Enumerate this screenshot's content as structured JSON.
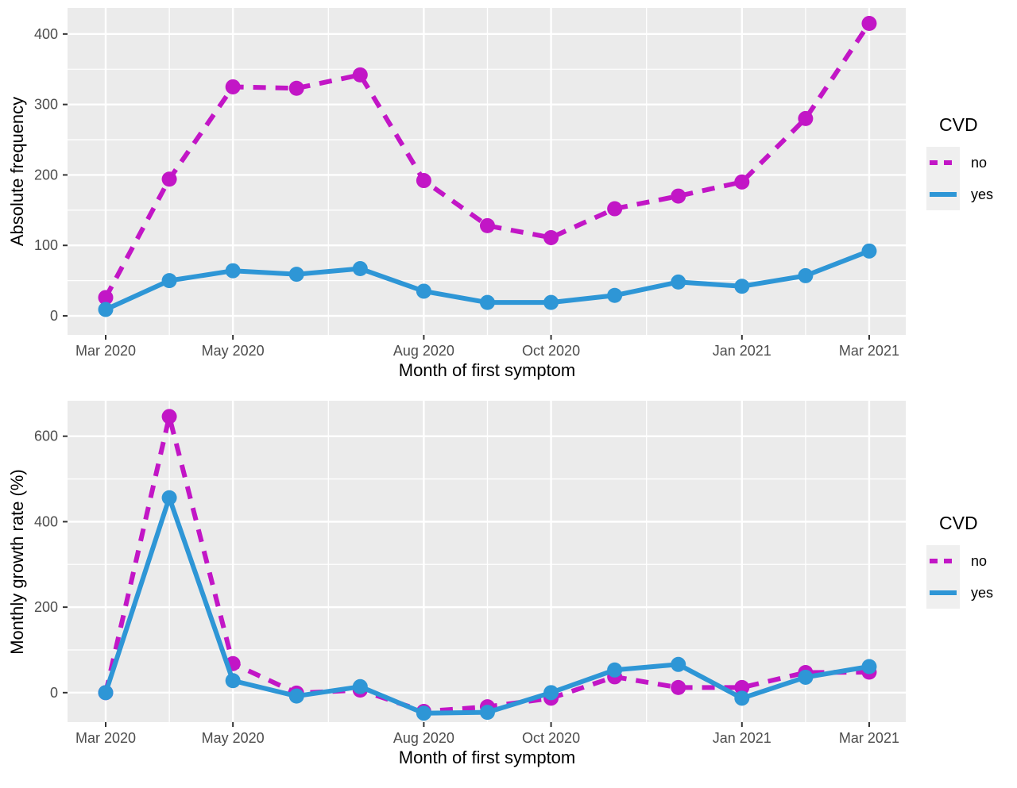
{
  "colors": {
    "no_series": "#C216C6",
    "yes_series": "#2E96D6",
    "panel_background": "#EBEBEB",
    "gridline": "#FFFFFF",
    "tick_text": "#4D4D4D",
    "tick_mark": "#333333",
    "axis_title_text": "#000000",
    "legend_key_background": "#EFEFEF"
  },
  "legend": {
    "title": "CVD",
    "entries": [
      {
        "label": "no",
        "style": "dashed",
        "color": "#C216C6"
      },
      {
        "label": "yes",
        "style": "solid",
        "color": "#2E96D6"
      }
    ]
  },
  "chart_data": [
    {
      "type": "line",
      "title": "",
      "xlabel": "Month of first symptom",
      "ylabel": "Absolute frequency",
      "categories": [
        "Mar 2020",
        "Apr 2020",
        "May 2020",
        "Jun 2020",
        "Jul 2020",
        "Aug 2020",
        "Sep 2020",
        "Oct 2020",
        "Nov 2020",
        "Dec 2020",
        "Jan 2021",
        "Feb 2021",
        "Mar 2021"
      ],
      "x_ticks": [
        {
          "index": 0,
          "label": "Mar 2020"
        },
        {
          "index": 2,
          "label": "May 2020"
        },
        {
          "index": 5,
          "label": "Aug 2020"
        },
        {
          "index": 7,
          "label": "Oct 2020"
        },
        {
          "index": 10,
          "label": "Jan 2021"
        },
        {
          "index": 12,
          "label": "Mar 2021"
        }
      ],
      "yticks": [
        0,
        100,
        200,
        300,
        400
      ],
      "ylim": [
        -27,
        437
      ],
      "grid": true,
      "legend_position": "right",
      "series": [
        {
          "name": "no",
          "dash": true,
          "color": "#C216C6",
          "values": [
            26,
            194,
            325,
            323,
            342,
            192,
            128,
            111,
            152,
            170,
            190,
            280,
            415
          ]
        },
        {
          "name": "yes",
          "dash": false,
          "color": "#2E96D6",
          "values": [
            9,
            50,
            64,
            59,
            67,
            35,
            19,
            19,
            29,
            48,
            42,
            57,
            92
          ]
        }
      ]
    },
    {
      "type": "line",
      "title": "",
      "xlabel": "Month of first symptom",
      "ylabel": "Monthly growth rate (%)",
      "categories": [
        "Mar 2020",
        "Apr 2020",
        "May 2020",
        "Jun 2020",
        "Jul 2020",
        "Aug 2020",
        "Sep 2020",
        "Oct 2020",
        "Nov 2020",
        "Dec 2020",
        "Jan 2021",
        "Feb 2021",
        "Mar 2021"
      ],
      "x_ticks": [
        {
          "index": 0,
          "label": "Mar 2020"
        },
        {
          "index": 2,
          "label": "May 2020"
        },
        {
          "index": 5,
          "label": "Aug 2020"
        },
        {
          "index": 7,
          "label": "Oct 2020"
        },
        {
          "index": 10,
          "label": "Jan 2021"
        },
        {
          "index": 12,
          "label": "Mar 2021"
        }
      ],
      "yticks": [
        0,
        200,
        400,
        600
      ],
      "ylim": [
        -69,
        683
      ],
      "grid": true,
      "legend_position": "right",
      "series": [
        {
          "name": "no",
          "dash": true,
          "color": "#C216C6",
          "values": [
            0,
            646,
            68,
            -1,
            6,
            -44,
            -33,
            -13,
            37,
            12,
            12,
            47,
            48
          ]
        },
        {
          "name": "yes",
          "dash": false,
          "color": "#2E96D6",
          "values": [
            0,
            456,
            28,
            -8,
            14,
            -48,
            -46,
            0,
            53,
            66,
            -13,
            36,
            61
          ]
        }
      ]
    }
  ]
}
